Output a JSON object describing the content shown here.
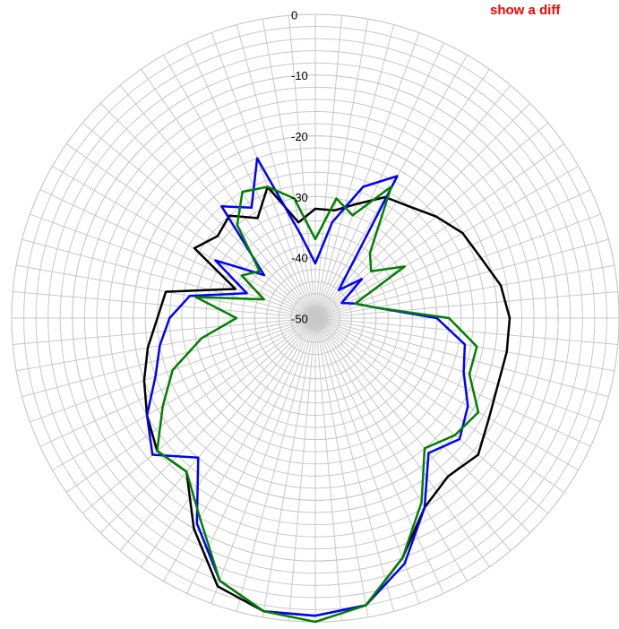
{
  "chart_data": {
    "type": "polar_line",
    "annotation": "show a diff",
    "x": [
      0,
      10,
      20,
      30,
      40,
      50,
      60,
      70,
      80,
      90,
      100,
      110,
      120,
      130,
      140,
      150,
      160,
      170,
      180,
      190,
      200,
      210,
      220,
      230,
      240,
      250,
      260,
      270,
      280,
      290,
      300,
      310,
      320,
      330,
      340,
      350
    ],
    "series": [
      {
        "color": "#000000",
        "values": [
          -32,
          -32,
          -30,
          -27,
          -26,
          -24,
          -22,
          -21,
          -19,
          -18,
          -18,
          -18,
          -17,
          -15,
          -16,
          -14,
          -8,
          -2,
          -1,
          -1,
          -3,
          -10,
          -17,
          -16,
          -18,
          -20,
          -22,
          -24,
          -25,
          -36,
          -27,
          -29,
          -28,
          -31,
          -27,
          -34
        ]
      },
      {
        "color": "#0000ff",
        "values": [
          -41,
          -34,
          -27,
          -23,
          -44,
          -40,
          -45,
          -43,
          -40,
          -30,
          -25,
          -24,
          -21,
          -19,
          -21,
          -14,
          -7,
          -2,
          -1,
          -1,
          -4,
          -11,
          -20,
          -15,
          -18,
          -22,
          -24,
          -26,
          -29,
          -38,
          -31,
          -39,
          -26,
          -29,
          -22,
          -36
        ]
      },
      {
        "color": "#008000",
        "values": [
          -37,
          -30,
          -32,
          -25,
          -36,
          -38,
          -33,
          -43,
          -40,
          -28,
          -23,
          -23,
          -19,
          -20,
          -22,
          -15,
          -8,
          -2,
          0,
          -1,
          -4,
          -12,
          -17,
          -16,
          -21,
          -25,
          -31,
          -37,
          -30,
          -41,
          -36,
          -38,
          -30,
          -26,
          -27,
          -30
        ]
      }
    ],
    "rlim": [
      -50,
      0
    ],
    "rticks": [
      0,
      -10,
      -20,
      -30,
      -40,
      -50
    ],
    "radial_grid_step": 2,
    "angular_grid_step": 5,
    "grid": true
  }
}
